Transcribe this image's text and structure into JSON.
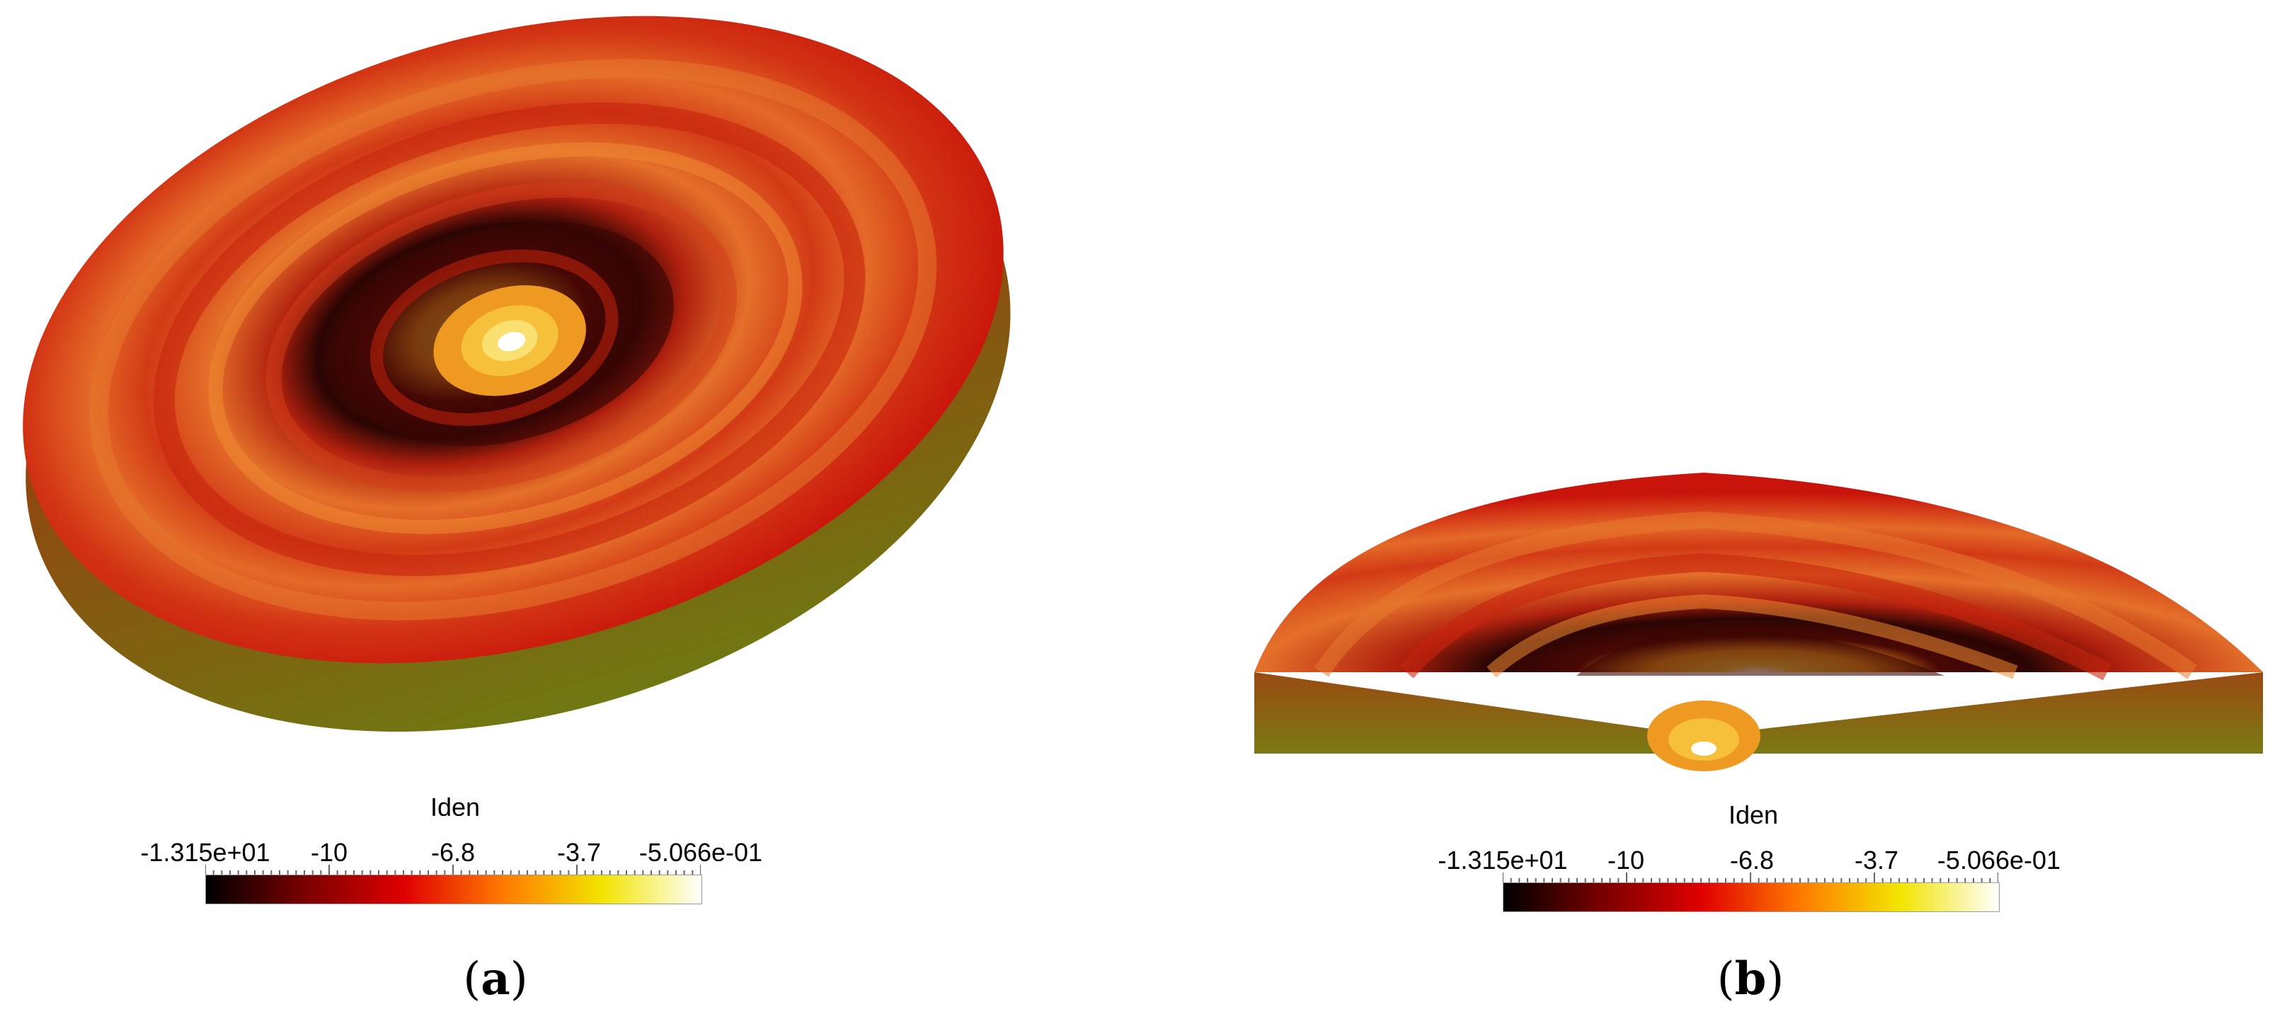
{
  "panels": [
    {
      "id": "a",
      "caption_letter": "a",
      "colorbar": {
        "title": "Iden",
        "tick_labels": [
          "-1.315e+01",
          "-10",
          "-6.8",
          "-3.7",
          "-5.066e-01"
        ],
        "stops": [
          "#000000",
          "#7a0000",
          "#e00000",
          "#ff7a00",
          "#f2e400",
          "#ffffff"
        ]
      }
    },
    {
      "id": "b",
      "caption_letter": "b",
      "colorbar": {
        "title": "Iden",
        "tick_labels": [
          "-1.315e+01",
          "-10",
          "-6.8",
          "-3.7",
          "-5.066e-01"
        ],
        "stops": [
          "#000000",
          "#7a0000",
          "#e00000",
          "#ff7a00",
          "#f2e400",
          "#ffffff"
        ]
      }
    }
  ],
  "colors": {
    "disk_outer": "#c8140a",
    "disk_mid": "#d8451a",
    "disk_band": "#e46a28",
    "disk_dark": "#5a0a05",
    "disk_core": "#f2b92a",
    "disk_side_top": "#b8300e",
    "disk_side_bottom": "#7a7a14"
  }
}
